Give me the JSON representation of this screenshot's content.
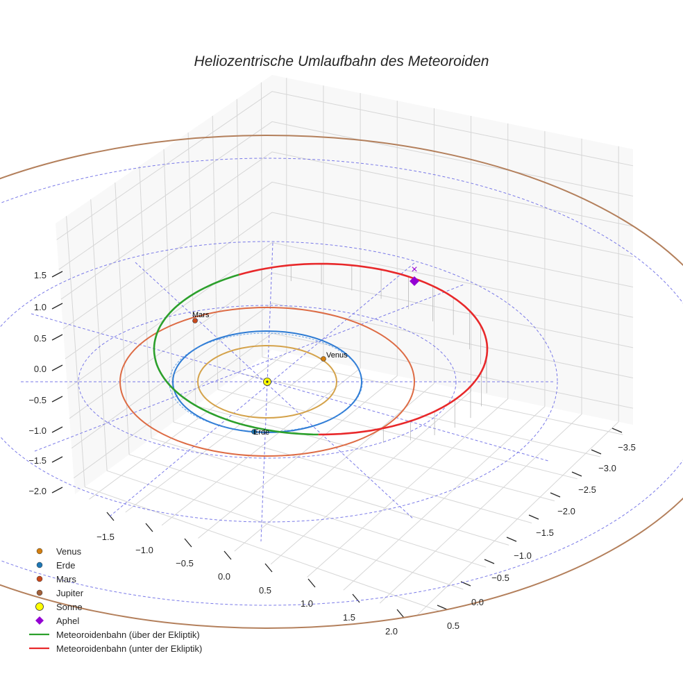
{
  "chart_data": {
    "type": "line3d",
    "title": "Heliozentrische Umlaufbahn des Meteoroiden",
    "xlabel": "",
    "ylabel": "",
    "zlabel": "",
    "axes": {
      "x": {
        "ticks": [
          "−1.5",
          "−1.0",
          "−0.5",
          "0.0",
          "0.5",
          "1.0",
          "1.5",
          "2.0"
        ],
        "range": [
          -1.8,
          2.2
        ]
      },
      "y": {
        "ticks": [
          "−3.5",
          "−3.0",
          "−2.5",
          "−2.0",
          "−1.5",
          "−1.0",
          "−0.5",
          "0.0",
          "0.5"
        ],
        "range": [
          -3.6,
          0.7
        ]
      },
      "z": {
        "ticks": [
          "1.5",
          "1.0",
          "0.5",
          "0.0",
          "−0.5",
          "−1.0",
          "−1.5",
          "−2.0"
        ],
        "range": [
          -2.3,
          1.9
        ]
      }
    },
    "planet_orbits": [
      {
        "name": "Venus",
        "radius_au": 0.72,
        "color": "#d4a24a"
      },
      {
        "name": "Erde",
        "radius_au": 1.0,
        "color": "#2d7bd4"
      },
      {
        "name": "Mars",
        "radius_au": 1.52,
        "color": "#dd6b44"
      },
      {
        "name": "Jupiter",
        "radius_au": 5.2,
        "color": "#b37f5b"
      }
    ],
    "planet_labels": [
      {
        "key": "mars",
        "text": "Mars"
      },
      {
        "key": "venus",
        "text": "Venus"
      },
      {
        "key": "erde",
        "text": "Erde"
      }
    ],
    "meteoroid_orbit": {
      "semi_major_axis_au": 2.6,
      "perihelion_au": 1.0,
      "aphelion_au": 4.2,
      "segments": [
        "über der Ekliptik",
        "unter der Ekliptik"
      ]
    },
    "aphel_marker": "×",
    "legend": [
      {
        "label": "Venus",
        "kind": "dot",
        "color": "#d37f10"
      },
      {
        "label": "Erde",
        "kind": "dot",
        "color": "#1f77b4"
      },
      {
        "label": "Mars",
        "kind": "dot",
        "color": "#c8491d"
      },
      {
        "label": "Jupiter",
        "kind": "dot",
        "color": "#a2603a"
      },
      {
        "label": "Sonne",
        "kind": "sun",
        "color": "#ffff00"
      },
      {
        "label": "Aphel",
        "kind": "diamond",
        "color": "#9400d3"
      },
      {
        "label": "Meteoroidenbahn (über der Ekliptik)",
        "kind": "line",
        "color": "#2ca02c"
      },
      {
        "label": "Meteoroidenbahn (unter der Ekliptik)",
        "kind": "line",
        "color": "#e8282a"
      }
    ],
    "legend_position": "bottom-left"
  }
}
